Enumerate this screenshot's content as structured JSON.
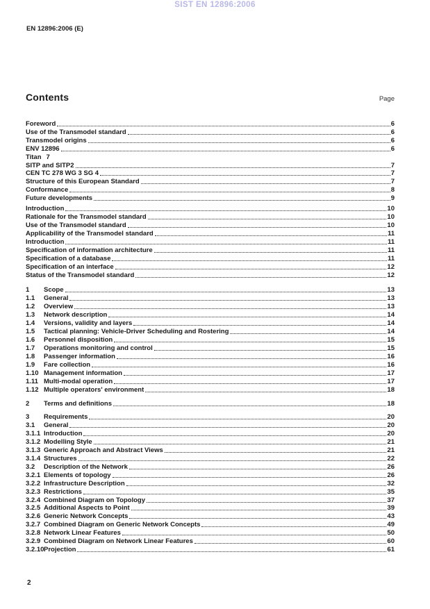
{
  "header": {
    "watermark": "SIST EN 12896:2006",
    "doc_ref": "EN 12896:2006 (E)"
  },
  "contents": {
    "title": "Contents",
    "page_label": "Page"
  },
  "footer": {
    "page_number": "2"
  },
  "colors": {
    "watermark": "#b8b8e8",
    "text": "#1a1a1a"
  },
  "toc": {
    "groups": [
      {
        "entries": [
          {
            "num": "",
            "title": "Foreword",
            "page": "6",
            "dots": true
          },
          {
            "num": "",
            "title": "Use of the Transmodel standard",
            "page": "6",
            "dots": true
          },
          {
            "num": "",
            "title": "Transmodel origins",
            "page": "6",
            "dots": true
          },
          {
            "num": "",
            "title": "ENV 12896",
            "page": "6",
            "dots": true
          },
          {
            "num": "",
            "title": "Titan",
            "page": "7",
            "dots": false
          },
          {
            "num": "",
            "title": "SITP and SITP2",
            "page": "7",
            "dots": true
          },
          {
            "num": "",
            "title": "CEN TC 278 WG 3 SG 4",
            "page": "7",
            "dots": true
          },
          {
            "num": "",
            "title": "Structure of this European Standard",
            "page": "7",
            "dots": true
          },
          {
            "num": "",
            "title": "Conformance",
            "page": "8",
            "dots": true
          },
          {
            "num": "",
            "title": "Future developments",
            "page": "9",
            "dots": true
          }
        ]
      },
      {
        "entries": [
          {
            "num": "",
            "title": "Introduction",
            "page": "10",
            "dots": true
          },
          {
            "num": "",
            "title": "Rationale for the Transmodel standard",
            "page": "10",
            "dots": true
          },
          {
            "num": "",
            "title": "Use of the Transmodel standard",
            "page": "10",
            "dots": true
          },
          {
            "num": "",
            "title": "Applicability of the Transmodel standard",
            "page": "11",
            "dots": true
          },
          {
            "num": "",
            "title": "Introduction",
            "page": "11",
            "dots": true
          },
          {
            "num": "",
            "title": "Specification of information architecture",
            "page": "11",
            "dots": true
          },
          {
            "num": "",
            "title": "Specification of a database",
            "page": "11",
            "dots": true
          },
          {
            "num": "",
            "title": "Specification of an interface",
            "page": "12",
            "dots": true
          },
          {
            "num": "",
            "title": "Status of the Transmodel standard",
            "page": "12",
            "dots": true
          }
        ]
      },
      {
        "entries": [
          {
            "num": "1",
            "title": "Scope",
            "page": "13",
            "dots": true
          },
          {
            "num": "1.1",
            "title": "General",
            "page": "13",
            "dots": true
          },
          {
            "num": "1.2",
            "title": "Overview",
            "page": "13",
            "dots": true
          },
          {
            "num": "1.3",
            "title": "Network description",
            "page": "14",
            "dots": true
          },
          {
            "num": "1.4",
            "title": "Versions, validity and layers",
            "page": "14",
            "dots": true
          },
          {
            "num": "1.5",
            "title": "Tactical planning: Vehicle-Driver Scheduling and Rostering",
            "page": "14",
            "dots": true
          },
          {
            "num": "1.6",
            "title": "Personnel disposition",
            "page": "15",
            "dots": true
          },
          {
            "num": "1.7",
            "title": "Operations monitoring and control",
            "page": "15",
            "dots": true
          },
          {
            "num": "1.8",
            "title": "Passenger information",
            "page": "16",
            "dots": true
          },
          {
            "num": "1.9",
            "title": "Fare collection",
            "page": "16",
            "dots": true
          },
          {
            "num": "1.10",
            "title": "Management information",
            "page": "17",
            "dots": true
          },
          {
            "num": "1.11",
            "title": "Multi-modal operation",
            "page": "17",
            "dots": true
          },
          {
            "num": "1.12",
            "title": "Multiple operators' environment",
            "page": "18",
            "dots": true
          }
        ]
      },
      {
        "entries": [
          {
            "num": "2",
            "title": "Terms and definitions",
            "page": "18",
            "dots": true
          }
        ]
      },
      {
        "entries": [
          {
            "num": "3",
            "title": "Requirements",
            "page": "20",
            "dots": true
          },
          {
            "num": "3.1",
            "title": "General",
            "page": "20",
            "dots": true
          },
          {
            "num": "3.1.1",
            "title": "Introduction",
            "page": "20",
            "dots": true
          },
          {
            "num": "3.1.2",
            "title": "Modelling Style",
            "page": "21",
            "dots": true
          },
          {
            "num": "3.1.3",
            "title": "Generic Approach and Abstract Views",
            "page": "21",
            "dots": true
          },
          {
            "num": "3.1.4",
            "title": "Structures",
            "page": "22",
            "dots": true
          },
          {
            "num": "3.2",
            "title": "Description of the Network",
            "page": "26",
            "dots": true
          },
          {
            "num": "3.2.1",
            "title": "Elements of topology",
            "page": "26",
            "dots": true
          },
          {
            "num": "3.2.2",
            "title": "Infrastructure Description",
            "page": "32",
            "dots": true
          },
          {
            "num": "3.2.3",
            "title": "Restrictions",
            "page": "35",
            "dots": true
          },
          {
            "num": "3.2.4",
            "title": "Combined Diagram on Topology",
            "page": "37",
            "dots": true
          },
          {
            "num": "3.2.5",
            "title": "Additional Aspects to Point",
            "page": "39",
            "dots": true
          },
          {
            "num": "3.2.6",
            "title": "Generic Network Concepts",
            "page": "43",
            "dots": true
          },
          {
            "num": "3.2.7",
            "title": "Combined Diagram on Generic Network Concepts",
            "page": "49",
            "dots": true
          },
          {
            "num": "3.2.8",
            "title": "Network Linear Features",
            "page": "50",
            "dots": true
          },
          {
            "num": "3.2.9",
            "title": "Combined Diagram on Network Linear Features",
            "page": "60",
            "dots": true
          },
          {
            "num": "3.2.10",
            "title": "Projection",
            "page": "61",
            "dots": true
          }
        ]
      }
    ]
  }
}
